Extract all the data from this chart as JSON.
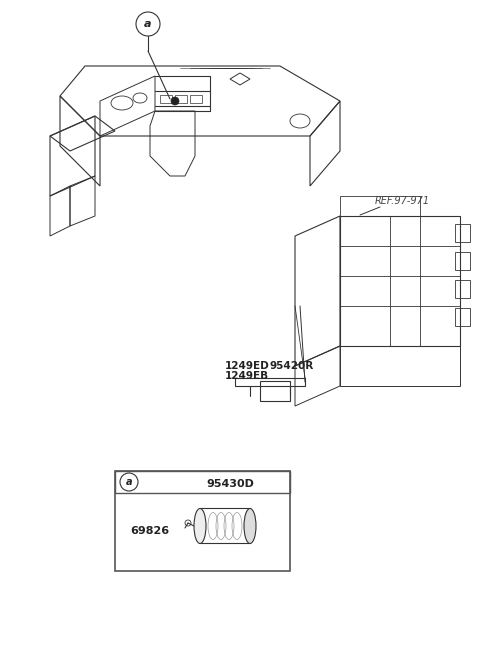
{
  "bg_color": "#ffffff",
  "fig_width": 4.8,
  "fig_height": 6.56,
  "dpi": 100,
  "title": "",
  "labels": {
    "ref": "REF.97-971",
    "part1_code": "1249ED",
    "part2_code": "1249EB",
    "part3_code": "95420R",
    "part4_code": "95430D",
    "part5_code": "69826",
    "callout_a": "a"
  },
  "colors": {
    "line": "#333333",
    "fill_light": "#f0f0f0",
    "text": "#222222",
    "ref_text": "#444444"
  }
}
